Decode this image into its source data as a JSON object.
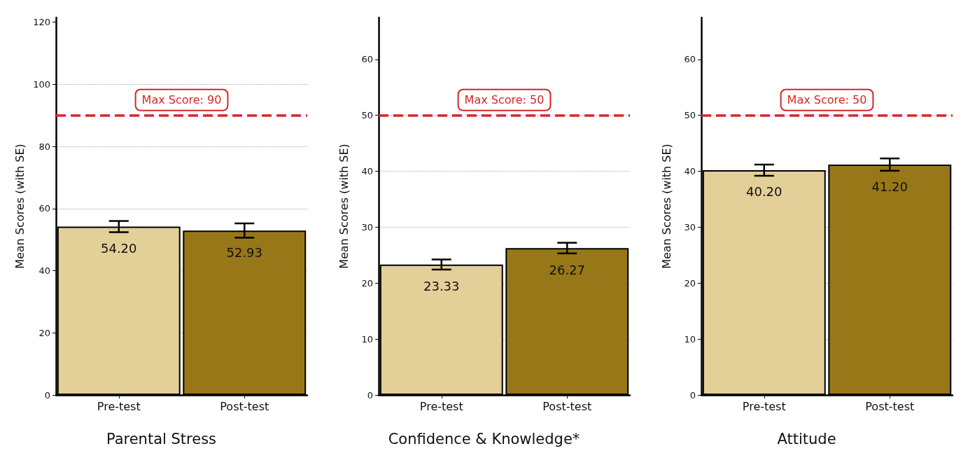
{
  "chart_data": [
    {
      "type": "bar",
      "title": "Parental Stress",
      "ylabel": "Mean Scores (with SE)",
      "categories": [
        "Pre-test",
        "Post-test"
      ],
      "values": [
        54.2,
        52.93
      ],
      "value_labels": [
        "54.20",
        "52.93"
      ],
      "errors": [
        1.8,
        2.3
      ],
      "colors": [
        "#e3cf98",
        "#977718"
      ],
      "ylim": [
        0,
        121.5
      ],
      "yticks": [
        0,
        20,
        40,
        60,
        80,
        100,
        120
      ],
      "grid": "y",
      "ref_lines": [
        {
          "axis": "y",
          "value": 90,
          "label": "Max Score: 90",
          "color": "#d62728",
          "line_style": "dashed"
        }
      ]
    },
    {
      "type": "bar",
      "title": "Confidence & Knowledge*",
      "ylabel": "Mean Scores (with SE)",
      "categories": [
        "Pre-test",
        "Post-test"
      ],
      "values": [
        23.33,
        26.27
      ],
      "value_labels": [
        "23.33",
        "26.27"
      ],
      "errors": [
        0.9,
        0.95
      ],
      "colors": [
        "#e3cf98",
        "#977718"
      ],
      "ylim": [
        0,
        67.5
      ],
      "yticks": [
        0,
        10,
        20,
        30,
        40,
        50,
        60
      ],
      "grid": "y",
      "ref_lines": [
        {
          "axis": "y",
          "value": 50,
          "label": "Max Score: 50",
          "color": "#d62728",
          "line_style": "dashed"
        }
      ]
    },
    {
      "type": "bar",
      "title": "Attitude",
      "ylabel": "Mean Scores (with SE)",
      "categories": [
        "Pre-test",
        "Post-test"
      ],
      "values": [
        40.2,
        41.2
      ],
      "value_labels": [
        "40.20",
        "41.20"
      ],
      "errors": [
        1.0,
        1.1
      ],
      "colors": [
        "#e3cf98",
        "#977718"
      ],
      "ylim": [
        0,
        67.5
      ],
      "yticks": [
        0,
        10,
        20,
        30,
        40,
        50,
        60
      ],
      "grid": "y",
      "ref_lines": [
        {
          "axis": "y",
          "value": 50,
          "label": "Max Score: 50",
          "color": "#d62728",
          "line_style": "dashed"
        }
      ]
    }
  ]
}
